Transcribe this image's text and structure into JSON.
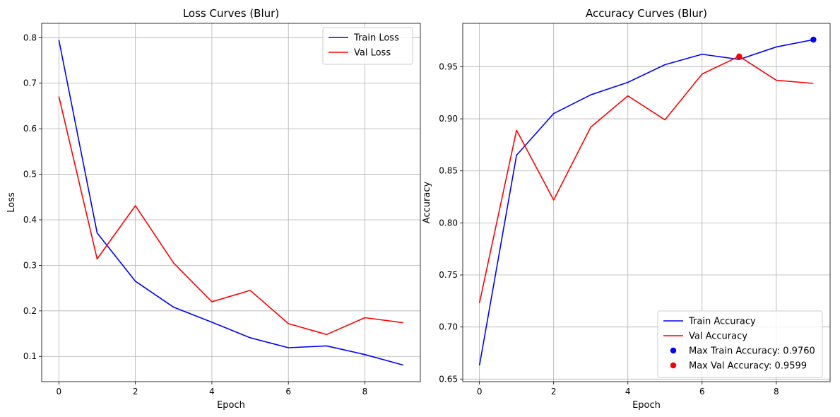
{
  "chart_data": [
    {
      "type": "line",
      "title": "Loss Curves (Blur)",
      "xlabel": "Epoch",
      "ylabel": "Loss",
      "x": [
        0,
        1,
        2,
        3,
        4,
        5,
        6,
        7,
        8,
        9
      ],
      "xlim": [
        -0.45,
        9.45
      ],
      "ylim": [
        0.0445,
        0.8315
      ],
      "xticks": [
        0,
        2,
        4,
        6,
        8
      ],
      "yticks": [
        0.1,
        0.2,
        0.3,
        0.4,
        0.5,
        0.6,
        0.7,
        0.8
      ],
      "ytick_decimals": 1,
      "grid": true,
      "legend_placement": "upper-right",
      "series": [
        {
          "name": "Train Loss",
          "color": "#0000ff",
          "values": [
            0.795,
            0.371,
            0.265,
            0.208,
            0.175,
            0.141,
            0.119,
            0.123,
            0.104,
            0.081
          ]
        },
        {
          "name": "Val Loss",
          "color": "#ff0000",
          "values": [
            0.671,
            0.314,
            0.431,
            0.305,
            0.22,
            0.245,
            0.172,
            0.148,
            0.185,
            0.174
          ]
        }
      ],
      "markers": []
    },
    {
      "type": "line",
      "title": "Accuracy Curves (Blur)",
      "xlabel": "Epoch",
      "ylabel": "Accuracy",
      "x": [
        0,
        1,
        2,
        3,
        4,
        5,
        6,
        7,
        8,
        9
      ],
      "xlim": [
        -0.45,
        9.45
      ],
      "ylim": [
        0.6475,
        0.9917
      ],
      "xticks": [
        0,
        2,
        4,
        6,
        8
      ],
      "yticks": [
        0.65,
        0.7,
        0.75,
        0.8,
        0.85,
        0.9,
        0.95
      ],
      "ytick_decimals": 2,
      "grid": true,
      "legend_placement": "lower-right",
      "series": [
        {
          "name": "Train Accuracy",
          "color": "#0000ff",
          "values": [
            0.663,
            0.865,
            0.905,
            0.923,
            0.935,
            0.952,
            0.962,
            0.957,
            0.969,
            0.976
          ]
        },
        {
          "name": "Val Accuracy",
          "color": "#ff0000",
          "values": [
            0.723,
            0.889,
            0.822,
            0.892,
            0.922,
            0.899,
            0.943,
            0.96,
            0.937,
            0.934
          ]
        }
      ],
      "markers": [
        {
          "name": "Max Train Accuracy: 0.9760",
          "color": "#0000ff",
          "x": 9,
          "y": 0.976
        },
        {
          "name": "Max Val Accuracy: 0.9599",
          "color": "#ff0000",
          "x": 7,
          "y": 0.9599
        }
      ]
    }
  ]
}
